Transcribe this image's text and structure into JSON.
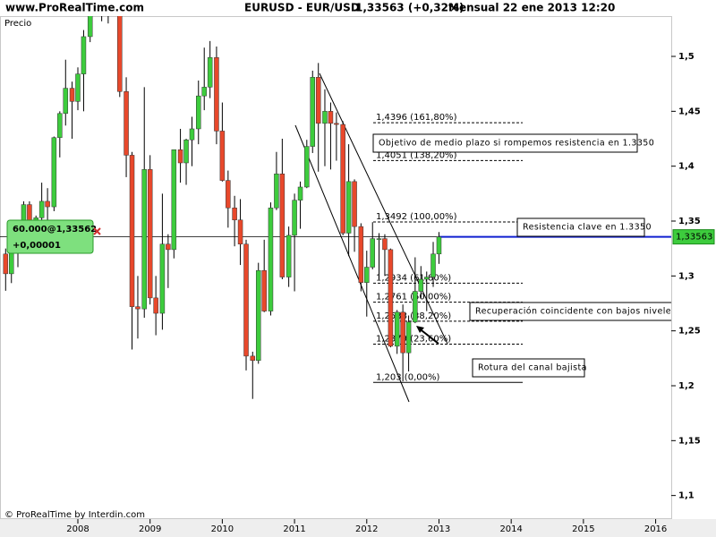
{
  "chart_data": {
    "type": "candlestick",
    "site": "www.ProRealTime.com",
    "symbol": "EURUSD - EUR/USD",
    "quote": "1,33563 (+0,32%)",
    "period": "Mensual  22 ene 2013 12:20",
    "ylabel": "Precio",
    "footer": "© ProRealTime by Interdin.com",
    "position": "60.000@1,33562",
    "position_pl": "+0,00001",
    "current_price": {
      "value": 1.33563,
      "label": "1,33563"
    },
    "up_color": "#3dcc3d",
    "down_color": "#e8482b",
    "xlim": [
      2006.922,
      2016.216
    ],
    "xticks": [
      2008,
      2009,
      2010,
      2011,
      2012,
      2013,
      2014,
      2015,
      2016
    ],
    "ylim": [
      1.0883,
      1.5367
    ],
    "yticks": [
      {
        "value": 1.1,
        "label": "1,1"
      },
      {
        "value": 1.15,
        "label": "1,15"
      },
      {
        "value": 1.2,
        "label": "1,2"
      },
      {
        "value": 1.25,
        "label": "1,25"
      },
      {
        "value": 1.3,
        "label": "1,3"
      },
      {
        "value": 1.35,
        "label": "1,35"
      },
      {
        "value": 1.4,
        "label": "1,4"
      },
      {
        "value": 1.45,
        "label": "1,45"
      },
      {
        "value": 1.5,
        "label": "1,5"
      }
    ],
    "x": [
      2007.0,
      2007.08,
      2007.17,
      2007.25,
      2007.33,
      2007.42,
      2007.5,
      2007.58,
      2007.67,
      2007.75,
      2007.83,
      2007.92,
      2008.0,
      2008.08,
      2008.17,
      2008.25,
      2008.33,
      2008.42,
      2008.5,
      2008.58,
      2008.67,
      2008.75,
      2008.83,
      2008.92,
      2009.0,
      2009.08,
      2009.17,
      2009.25,
      2009.33,
      2009.42,
      2009.5,
      2009.58,
      2009.67,
      2009.75,
      2009.83,
      2009.92,
      2010.0,
      2010.08,
      2010.17,
      2010.25,
      2010.33,
      2010.42,
      2010.5,
      2010.58,
      2010.67,
      2010.75,
      2010.83,
      2010.92,
      2011.0,
      2011.08,
      2011.17,
      2011.25,
      2011.33,
      2011.42,
      2011.5,
      2011.58,
      2011.67,
      2011.75,
      2011.83,
      2011.92,
      2012.0,
      2012.08,
      2012.17,
      2012.25,
      2012.33,
      2012.42,
      2012.5,
      2012.58,
      2012.67,
      2012.75,
      2012.83,
      2012.92,
      2013.0
    ],
    "open": [
      1.32,
      1.302,
      1.323,
      1.3355,
      1.365,
      1.345,
      1.353,
      1.368,
      1.363,
      1.426,
      1.448,
      1.471,
      1.459,
      1.484,
      1.518,
      1.578,
      1.561,
      1.555,
      1.575,
      1.56,
      1.468,
      1.41,
      1.272,
      1.27,
      1.397,
      1.28,
      1.266,
      1.329,
      1.324,
      1.415,
      1.403,
      1.424,
      1.434,
      1.464,
      1.472,
      1.499,
      1.432,
      1.387,
      1.362,
      1.351,
      1.329,
      1.227,
      1.223,
      1.305,
      1.268,
      1.362,
      1.393,
      1.299,
      1.337,
      1.369,
      1.381,
      1.418,
      1.481,
      1.439,
      1.45,
      1.439,
      1.438,
      1.339,
      1.386,
      1.345,
      1.294,
      1.308,
      1.334,
      1.334,
      1.324,
      1.236,
      1.267,
      1.23,
      1.258,
      1.286,
      1.297,
      1.299,
      1.32
    ],
    "high": [
      1.325,
      1.325,
      1.337,
      1.368,
      1.368,
      1.355,
      1.385,
      1.38,
      1.427,
      1.45,
      1.497,
      1.477,
      1.49,
      1.524,
      1.59,
      1.602,
      1.578,
      1.584,
      1.604,
      1.562,
      1.481,
      1.413,
      1.3,
      1.472,
      1.41,
      1.3,
      1.375,
      1.338,
      1.415,
      1.434,
      1.425,
      1.445,
      1.478,
      1.508,
      1.514,
      1.509,
      1.458,
      1.396,
      1.373,
      1.37,
      1.333,
      1.231,
      1.312,
      1.333,
      1.367,
      1.413,
      1.425,
      1.345,
      1.375,
      1.386,
      1.424,
      1.487,
      1.494,
      1.47,
      1.458,
      1.449,
      1.441,
      1.42,
      1.388,
      1.348,
      1.323,
      1.349,
      1.339,
      1.338,
      1.325,
      1.269,
      1.274,
      1.264,
      1.317,
      1.309,
      1.304,
      1.331,
      1.34
    ],
    "low": [
      1.2865,
      1.2935,
      1.308,
      1.333,
      1.341,
      1.33,
      1.345,
      1.337,
      1.359,
      1.408,
      1.437,
      1.425,
      1.451,
      1.45,
      1.513,
      1.553,
      1.532,
      1.53,
      1.551,
      1.463,
      1.39,
      1.233,
      1.243,
      1.262,
      1.274,
      1.246,
      1.251,
      1.289,
      1.316,
      1.385,
      1.383,
      1.4,
      1.42,
      1.451,
      1.462,
      1.42,
      1.386,
      1.344,
      1.327,
      1.31,
      1.214,
      1.188,
      1.22,
      1.267,
      1.264,
      1.36,
      1.297,
      1.29,
      1.286,
      1.343,
      1.38,
      1.412,
      1.395,
      1.4,
      1.397,
      1.405,
      1.337,
      1.318,
      1.322,
      1.286,
      1.263,
      1.306,
      1.297,
      1.3,
      1.235,
      1.229,
      1.204,
      1.213,
      1.257,
      1.28,
      1.268,
      1.29,
      1.311
    ],
    "close": [
      1.302,
      1.323,
      1.3355,
      1.365,
      1.345,
      1.353,
      1.368,
      1.363,
      1.426,
      1.448,
      1.471,
      1.459,
      1.484,
      1.518,
      1.578,
      1.561,
      1.555,
      1.575,
      1.56,
      1.468,
      1.41,
      1.272,
      1.27,
      1.397,
      1.28,
      1.266,
      1.329,
      1.324,
      1.415,
      1.403,
      1.424,
      1.434,
      1.464,
      1.472,
      1.499,
      1.432,
      1.387,
      1.362,
      1.351,
      1.329,
      1.227,
      1.223,
      1.305,
      1.268,
      1.362,
      1.393,
      1.299,
      1.337,
      1.369,
      1.381,
      1.418,
      1.481,
      1.439,
      1.45,
      1.439,
      1.438,
      1.339,
      1.386,
      1.345,
      1.294,
      1.308,
      1.334,
      1.334,
      1.324,
      1.236,
      1.267,
      1.23,
      1.258,
      1.286,
      1.297,
      1.299,
      1.32,
      1.33563
    ],
    "fib_levels": [
      {
        "value": 1.4396,
        "label": "1,4396 (161,80%)"
      },
      {
        "value": 1.4051,
        "label": "1,4051 (138,20%)"
      },
      {
        "value": 1.3492,
        "label": "1,3492 (100,00%)"
      },
      {
        "value": 1.2934,
        "label": "1,2934 (61,80%)"
      },
      {
        "value": 1.2761,
        "label": "1,2761 (50,00%)"
      },
      {
        "value": 1.2588,
        "label": "1,2588 (38,20%)"
      },
      {
        "value": 1.2379,
        "label": "1,2379 (23,60%)"
      },
      {
        "value": 1.203,
        "label": "1,203 (0,00%)"
      }
    ],
    "notes": [
      "Objetivo de medio plazo si rompemos resistencia en 1.3350",
      "Resistencia clave en 1.3350",
      "Recuperación coincidente con bajos niveles de",
      "Rotura del canal bajista"
    ]
  }
}
